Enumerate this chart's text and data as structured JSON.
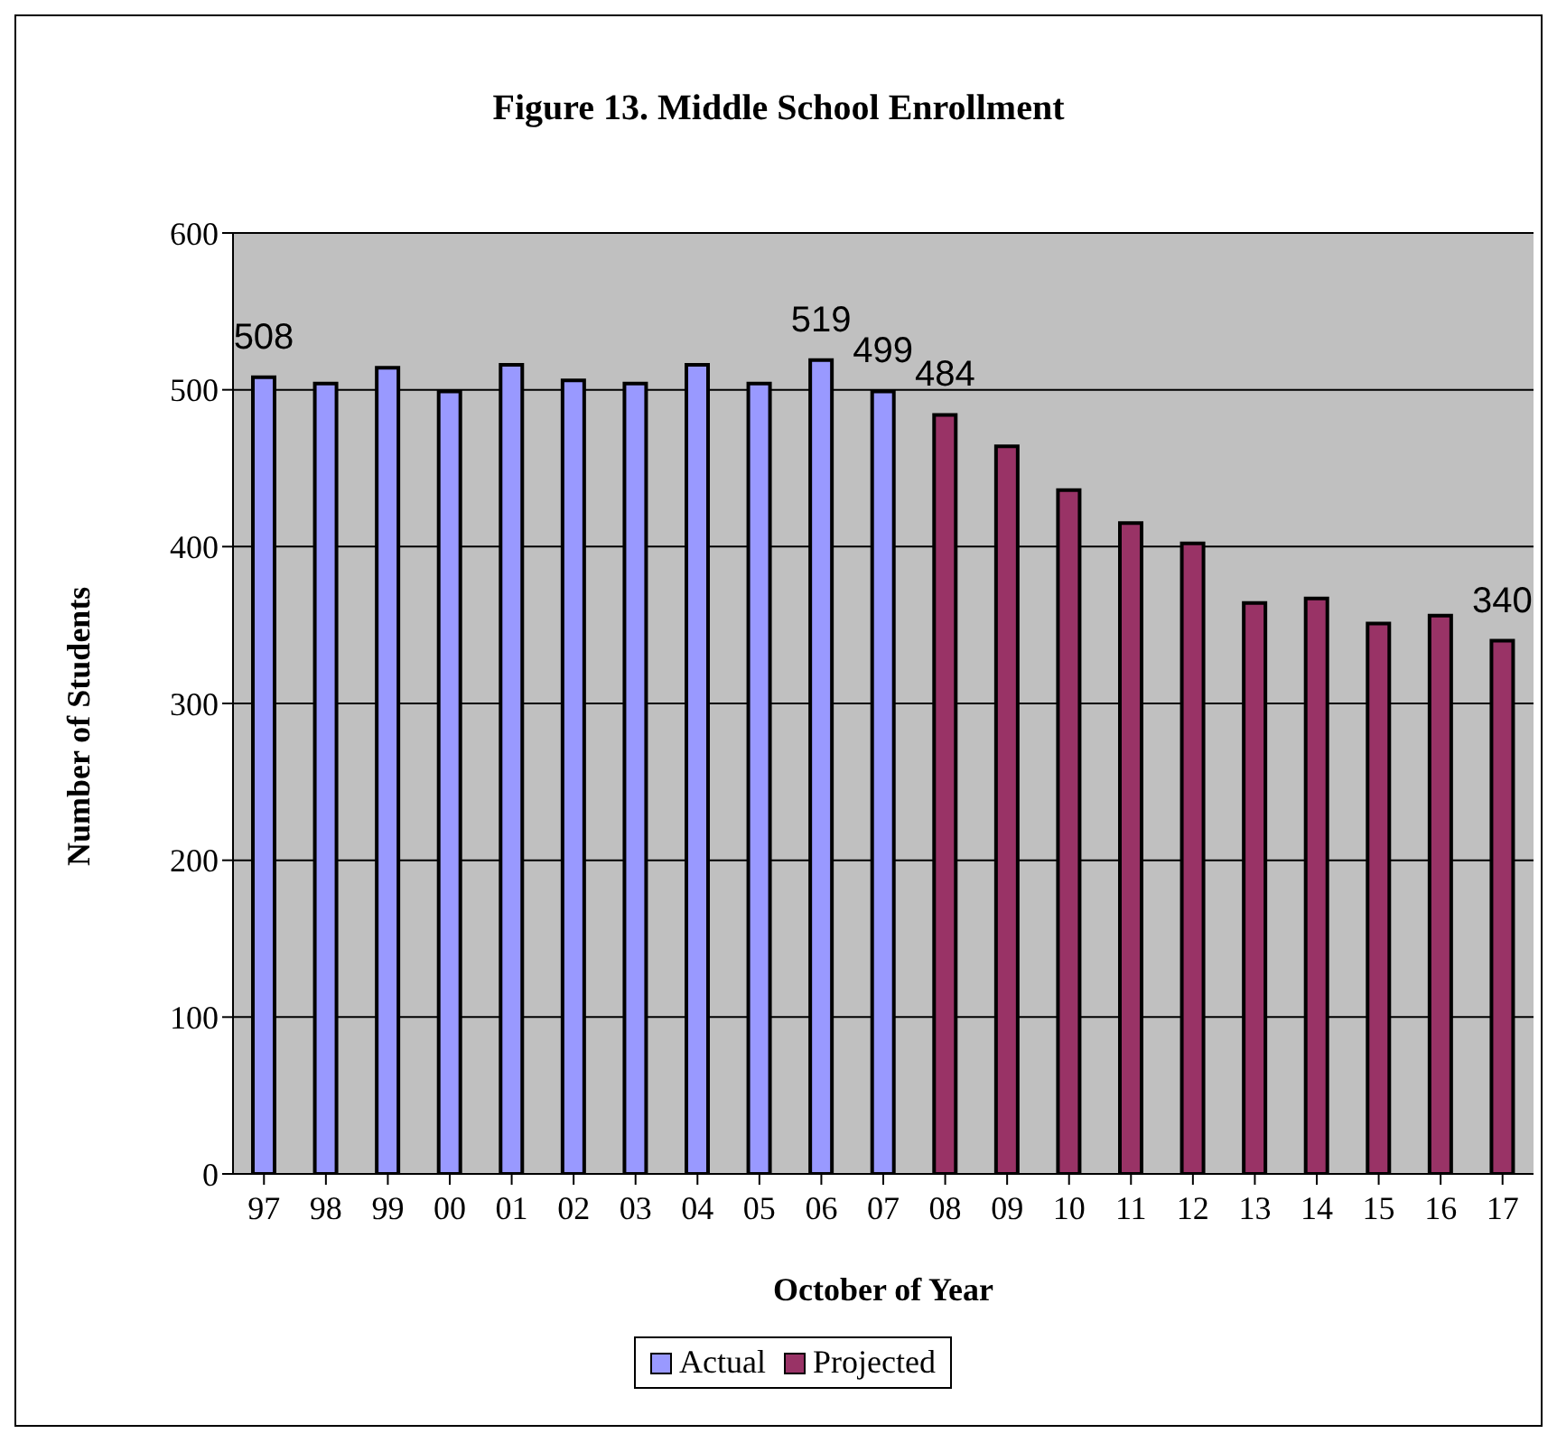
{
  "chart_data": {
    "type": "bar",
    "title": "Figure 13. Middle School Enrollment",
    "xlabel": "October of Year",
    "ylabel": "Number of Students",
    "categories": [
      "97",
      "98",
      "99",
      "00",
      "01",
      "02",
      "03",
      "04",
      "05",
      "06",
      "07",
      "08",
      "09",
      "10",
      "11",
      "12",
      "13",
      "14",
      "15",
      "16",
      "17"
    ],
    "series": [
      {
        "name": "Actual",
        "color": "#9999ff",
        "values": [
          508,
          504,
          514,
          499,
          516,
          506,
          504,
          516,
          504,
          519,
          499,
          null,
          null,
          null,
          null,
          null,
          null,
          null,
          null,
          null,
          null
        ],
        "value_labels": [
          "508",
          null,
          null,
          null,
          null,
          null,
          null,
          null,
          null,
          "519",
          "499",
          null,
          null,
          null,
          null,
          null,
          null,
          null,
          null,
          null,
          null
        ]
      },
      {
        "name": "Projected",
        "color": "#993366",
        "values": [
          null,
          null,
          null,
          null,
          null,
          null,
          null,
          null,
          null,
          null,
          null,
          484,
          464,
          436,
          415,
          402,
          364,
          367,
          351,
          356,
          340
        ],
        "value_labels": [
          null,
          null,
          null,
          null,
          null,
          null,
          null,
          null,
          null,
          null,
          null,
          "484",
          null,
          null,
          null,
          null,
          null,
          null,
          null,
          null,
          "340"
        ]
      }
    ],
    "ylim": [
      0,
      600
    ],
    "yticks": [
      0,
      100,
      200,
      300,
      400,
      500,
      600
    ],
    "grid": "y",
    "legend": "bottom"
  }
}
